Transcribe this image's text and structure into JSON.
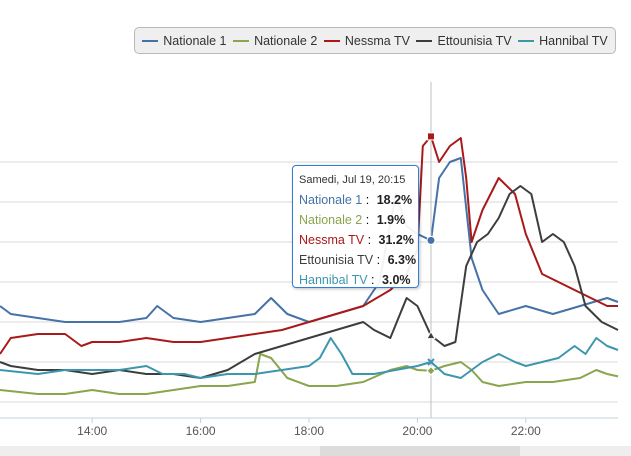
{
  "legend": {
    "items": [
      {
        "label": "Nationale 1",
        "color": "#4572a7"
      },
      {
        "label": "Nationale 2",
        "color": "#89a54e"
      },
      {
        "label": "Nessma TV",
        "color": "#aa1919"
      },
      {
        "label": "Ettounisia TV",
        "color": "#3d3d3d"
      },
      {
        "label": "Hannibal TV",
        "color": "#3d96ae"
      }
    ]
  },
  "tooltip": {
    "title": "Samedi, Jul 19, 20:15",
    "rows": [
      {
        "name": "Nationale 1",
        "sep": ":",
        "value": "18.2%",
        "color": "#4572a7"
      },
      {
        "name": "Nationale 2",
        "sep": ":",
        "value": "1.9%",
        "color": "#89a54e"
      },
      {
        "name": "Nessma TV",
        "sep": ":",
        "value": "31.2%",
        "color": "#aa1919"
      },
      {
        "name": "Ettounisia TV",
        "sep": ":",
        "value": "6.3%",
        "color": "#3d3d3d"
      },
      {
        "name": "Hannibal TV",
        "sep": ":",
        "value": "3.0%",
        "color": "#3d96ae"
      }
    ]
  },
  "chart_data": {
    "type": "line",
    "xlabel": "",
    "ylabel": "",
    "x_tick_labels": [
      "14:00",
      "16:00",
      "18:00",
      "20:00",
      "22:00"
    ],
    "x_ticks": [
      14,
      16,
      18,
      20,
      22
    ],
    "xlim": [
      12.3,
      23.7
    ],
    "ylim": [
      -4,
      38
    ],
    "grid": "horizontal",
    "legend_position": "top-right",
    "highlight_x": 20.25,
    "series": [
      {
        "name": "Nationale 1",
        "color": "#4572a7",
        "points": [
          [
            12.3,
            10
          ],
          [
            12.5,
            9
          ],
          [
            13,
            8.5
          ],
          [
            13.5,
            8
          ],
          [
            14,
            8
          ],
          [
            14.5,
            8
          ],
          [
            15,
            8.5
          ],
          [
            15.2,
            10
          ],
          [
            15.5,
            8.5
          ],
          [
            16,
            8
          ],
          [
            16.5,
            8.5
          ],
          [
            17,
            9
          ],
          [
            17.3,
            11
          ],
          [
            17.6,
            9
          ],
          [
            18,
            8
          ],
          [
            18.5,
            9
          ],
          [
            19,
            10
          ],
          [
            19.3,
            13
          ],
          [
            19.6,
            24
          ],
          [
            19.8,
            20
          ],
          [
            20,
            19
          ],
          [
            20.25,
            18.2
          ],
          [
            20.4,
            26
          ],
          [
            20.6,
            28
          ],
          [
            20.8,
            28.5
          ],
          [
            21,
            16
          ],
          [
            21.2,
            12
          ],
          [
            21.5,
            9
          ],
          [
            22,
            10
          ],
          [
            22.5,
            9
          ],
          [
            23,
            10
          ],
          [
            23.5,
            11
          ],
          [
            23.7,
            10.5
          ]
        ]
      },
      {
        "name": "Nationale 2",
        "color": "#89a54e",
        "points": [
          [
            12.3,
            -0.5
          ],
          [
            13,
            -1
          ],
          [
            13.5,
            -1
          ],
          [
            14,
            -0.5
          ],
          [
            14.5,
            -1
          ],
          [
            15,
            -1
          ],
          [
            15.5,
            -0.5
          ],
          [
            16,
            0
          ],
          [
            16.5,
            0
          ],
          [
            17,
            0.5
          ],
          [
            17.1,
            4
          ],
          [
            17.3,
            3.5
          ],
          [
            17.6,
            1
          ],
          [
            18,
            0
          ],
          [
            18.5,
            0
          ],
          [
            19,
            0.5
          ],
          [
            19.5,
            2
          ],
          [
            19.8,
            2.5
          ],
          [
            20,
            2
          ],
          [
            20.25,
            1.9
          ],
          [
            20.5,
            2.5
          ],
          [
            20.8,
            3
          ],
          [
            21,
            2
          ],
          [
            21.2,
            0.5
          ],
          [
            21.5,
            0
          ],
          [
            22,
            0.5
          ],
          [
            22.5,
            0.5
          ],
          [
            23,
            1
          ],
          [
            23.3,
            2
          ],
          [
            23.5,
            1.5
          ],
          [
            23.7,
            1.2
          ]
        ]
      },
      {
        "name": "Nessma TV",
        "color": "#aa1919",
        "points": [
          [
            12.3,
            4
          ],
          [
            12.5,
            6
          ],
          [
            13,
            6.5
          ],
          [
            13.5,
            6.5
          ],
          [
            13.8,
            5
          ],
          [
            14,
            5.5
          ],
          [
            14.5,
            5.5
          ],
          [
            15,
            6
          ],
          [
            15.5,
            5.5
          ],
          [
            16,
            5.5
          ],
          [
            16.5,
            6
          ],
          [
            17,
            6.5
          ],
          [
            17.5,
            7
          ],
          [
            18,
            8
          ],
          [
            18.5,
            9
          ],
          [
            19,
            10
          ],
          [
            19.5,
            12
          ],
          [
            19.8,
            14
          ],
          [
            20,
            17
          ],
          [
            20.1,
            30
          ],
          [
            20.25,
            31.2
          ],
          [
            20.4,
            28
          ],
          [
            20.6,
            30
          ],
          [
            20.8,
            31
          ],
          [
            20.9,
            26
          ],
          [
            21,
            18
          ],
          [
            21.2,
            22
          ],
          [
            21.5,
            26
          ],
          [
            21.8,
            24
          ],
          [
            22,
            19
          ],
          [
            22.3,
            14
          ],
          [
            22.6,
            13
          ],
          [
            22.9,
            12
          ],
          [
            23.2,
            11
          ],
          [
            23.5,
            10
          ],
          [
            23.7,
            10
          ]
        ]
      },
      {
        "name": "Ettounisia TV",
        "color": "#3d3d3d",
        "points": [
          [
            12.3,
            3
          ],
          [
            12.5,
            2.5
          ],
          [
            13,
            2
          ],
          [
            13.5,
            2
          ],
          [
            14,
            1.5
          ],
          [
            14.5,
            2
          ],
          [
            15,
            1.5
          ],
          [
            15.5,
            1.5
          ],
          [
            16,
            1
          ],
          [
            16.5,
            2
          ],
          [
            17,
            4
          ],
          [
            17.5,
            5
          ],
          [
            18,
            6
          ],
          [
            18.5,
            7
          ],
          [
            19,
            8
          ],
          [
            19.2,
            7
          ],
          [
            19.5,
            6
          ],
          [
            19.8,
            11
          ],
          [
            20,
            10
          ],
          [
            20.25,
            6.3
          ],
          [
            20.5,
            5
          ],
          [
            20.7,
            5.5
          ],
          [
            20.9,
            15
          ],
          [
            21.1,
            18
          ],
          [
            21.3,
            19
          ],
          [
            21.5,
            21
          ],
          [
            21.7,
            24
          ],
          [
            21.9,
            25
          ],
          [
            22.1,
            24
          ],
          [
            22.3,
            18
          ],
          [
            22.5,
            19
          ],
          [
            22.7,
            18
          ],
          [
            22.9,
            15
          ],
          [
            23.1,
            10
          ],
          [
            23.4,
            8
          ],
          [
            23.7,
            7
          ]
        ]
      },
      {
        "name": "Hannibal TV",
        "color": "#3d96ae",
        "points": [
          [
            12.3,
            2
          ],
          [
            13,
            1.5
          ],
          [
            13.5,
            2
          ],
          [
            14,
            2
          ],
          [
            14.5,
            2
          ],
          [
            15,
            2.5
          ],
          [
            15.3,
            1.5
          ],
          [
            15.7,
            1.5
          ],
          [
            16,
            1
          ],
          [
            16.5,
            1.5
          ],
          [
            17,
            1.5
          ],
          [
            17.5,
            2
          ],
          [
            18,
            2.5
          ],
          [
            18.2,
            3.5
          ],
          [
            18.4,
            6
          ],
          [
            18.6,
            4
          ],
          [
            18.8,
            1.5
          ],
          [
            19.2,
            1.5
          ],
          [
            19.6,
            2
          ],
          [
            20,
            2.5
          ],
          [
            20.25,
            3.0
          ],
          [
            20.5,
            1.5
          ],
          [
            20.8,
            1
          ],
          [
            21,
            2
          ],
          [
            21.2,
            3
          ],
          [
            21.5,
            4
          ],
          [
            21.8,
            3
          ],
          [
            22,
            2.5
          ],
          [
            22.3,
            3
          ],
          [
            22.6,
            3.5
          ],
          [
            22.9,
            5
          ],
          [
            23.1,
            4
          ],
          [
            23.3,
            6
          ],
          [
            23.5,
            5
          ],
          [
            23.7,
            4.5
          ]
        ]
      }
    ]
  }
}
